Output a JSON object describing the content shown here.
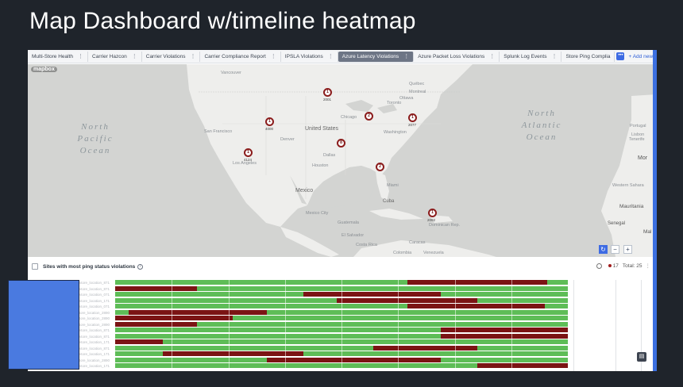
{
  "slide_title": "Map Dashboard w/timeline heatmap",
  "tabs": [
    {
      "label": "Multi-Store Health",
      "active": false
    },
    {
      "label": "Carrier Hazcon",
      "active": false
    },
    {
      "label": "Carrier Violations",
      "active": false
    },
    {
      "label": "Carrier Compliance Report",
      "active": false
    },
    {
      "label": "IPSLA Violations",
      "active": false
    },
    {
      "label": "Azure Latency Violations",
      "active": true
    },
    {
      "label": "Azure Packet Loss Violations",
      "active": false
    },
    {
      "label": "Splunk Log Events",
      "active": false
    },
    {
      "label": "Store Ping Complia",
      "active": false
    }
  ],
  "tab_menu_icon": "⋮",
  "more_tabs_icon": "•••",
  "add_new_label": "+ Add new",
  "map": {
    "brand": "mapbox",
    "oceans": [
      {
        "id": "north-pacific",
        "lines": [
          "North",
          "Pacific",
          "Ocean"
        ]
      },
      {
        "id": "north-atlantic",
        "lines": [
          "North",
          "Atlantic",
          "Ocean"
        ]
      }
    ],
    "labels": {
      "united_states": "United States",
      "mexico": "Mexico",
      "cuba": "Cuba",
      "vancouver": "Vancouver",
      "quebec": "Québec",
      "montreal": "Montreal",
      "toronto": "Toronto",
      "chicago": "Chicago",
      "washington": "Washington",
      "houston": "Houston",
      "san_francisco": "San Francisco",
      "mexico_city": "Mexico City",
      "guatemala": "Guatemala",
      "caracas": "Caracas",
      "venezuela": "Venezuela",
      "portugal": "Portugal",
      "mor": "Mor",
      "western_sahara": "Western Sahara",
      "mauritania": "Mauritania",
      "senegal": "Senegal",
      "mal": "Mal",
      "tenerife": "Tenerife",
      "miami": "Miami",
      "lisbon": "Lisbon",
      "ottawa": "Ottawa",
      "denver": "Denver",
      "dallas": "Dallas",
      "los_angeles": "Los Angeles",
      "el_salvador": "El Salvador",
      "costa_rica": "Costa Rica",
      "colombia": "Colombia",
      "dominican": "Dominican Rep."
    },
    "markers": [
      {
        "count": "1",
        "label": "2001"
      },
      {
        "count": "2",
        "label": ""
      },
      {
        "count": "1",
        "label": "2077"
      },
      {
        "count": "1",
        "label": "4000"
      },
      {
        "count": "8",
        "label": ""
      },
      {
        "count": "1",
        "label": "4124"
      },
      {
        "count": "2",
        "label": ""
      },
      {
        "count": "1",
        "label": "2092"
      }
    ],
    "controls": {
      "reset": "↻",
      "zoom_out": "−",
      "zoom_in": "+"
    }
  },
  "panel": {
    "title": "Sites with most ping status violations",
    "info_icon": "i",
    "violation_count": "17",
    "total_label": "Total: 25",
    "menu_icon": "⋮",
    "colors": {
      "ok": "#5ebd57",
      "violation": "#7b1414"
    }
  },
  "heatmap_rows": [
    {
      "label": "store_location_871",
      "violations": [
        [
          0.645,
          0.955
        ]
      ]
    },
    {
      "label": "store_location_871",
      "violations": [
        [
          0.0,
          0.18
        ]
      ]
    },
    {
      "label": "store_location_071",
      "violations": [
        [
          0.415,
          0.72
        ]
      ]
    },
    {
      "label": "store_location_171",
      "violations": [
        [
          0.49,
          0.8
        ]
      ]
    },
    {
      "label": "store_location_071",
      "violations": [
        [
          0.645,
          0.95
        ]
      ]
    },
    {
      "label": "store_location_2890",
      "violations": [
        [
          0.03,
          0.335
        ]
      ]
    },
    {
      "label": "store_location_2890",
      "violations": [
        [
          0.0,
          0.26
        ]
      ]
    },
    {
      "label": "store_location_2890",
      "violations": [
        [
          0.0,
          0.18
        ]
      ]
    },
    {
      "label": "store_location_871",
      "violations": [
        [
          0.72,
          1.0
        ]
      ]
    },
    {
      "label": "store_location_871",
      "violations": [
        [
          0.72,
          1.0
        ]
      ]
    },
    {
      "label": "store_location_171",
      "violations": [
        [
          0.0,
          0.105
        ]
      ]
    },
    {
      "label": "store_location_871",
      "violations": [
        [
          0.57,
          0.8
        ]
      ]
    },
    {
      "label": "store_location_171",
      "violations": [
        [
          0.105,
          0.415
        ]
      ]
    },
    {
      "label": "store_location_2890",
      "violations": [
        [
          0.335,
          0.72
        ]
      ]
    },
    {
      "label": "store_location_171",
      "violations": [
        [
          0.8,
          1.0
        ]
      ]
    }
  ],
  "doc_button_icon": "▤"
}
